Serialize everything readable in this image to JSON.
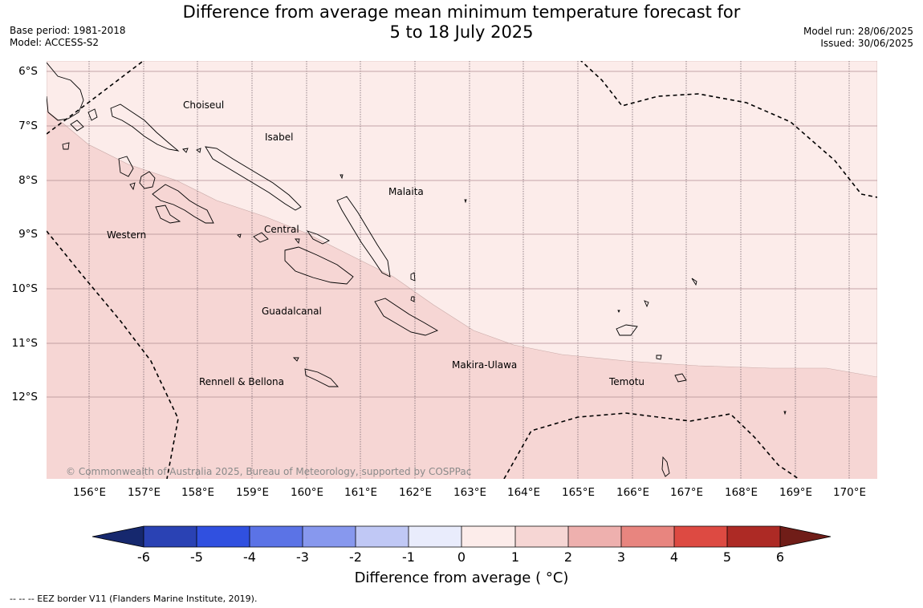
{
  "title": {
    "line1": "Difference from average mean minimum temperature forecast for",
    "line2": "5 to 18 July 2025"
  },
  "meta_left": {
    "base_period": "Base period: 1981-2018",
    "model": "Model: ACCESS-S2"
  },
  "meta_right": {
    "model_run": "Model run: 28/06/2025",
    "issued": "Issued: 30/06/2025"
  },
  "lat_labels": [
    "6°S",
    "7°S",
    "8°S",
    "9°S",
    "10°S",
    "11°S",
    "12°S"
  ],
  "lon_labels": [
    "156°E",
    "157°E",
    "158°E",
    "159°E",
    "160°E",
    "161°E",
    "162°E",
    "163°E",
    "164°E",
    "165°E",
    "166°E",
    "167°E",
    "168°E",
    "169°E",
    "170°E"
  ],
  "regions": [
    "Choiseul",
    "Isabel",
    "Malaita",
    "Western",
    "Central",
    "Guadalcanal",
    "Makira-Ulawa",
    "Rennell & Bellona",
    "Temotu"
  ],
  "copyright": "© Commonwealth of Australia 2025, Bureau of Meteorology, supported by COSPPac",
  "colorbar": {
    "ticks": [
      "-6",
      "-5",
      "-4",
      "-3",
      "-2",
      "-1",
      "0",
      "1",
      "2",
      "3",
      "4",
      "5",
      "6"
    ],
    "colors": [
      "#16286e",
      "#2a42b4",
      "#3050e0",
      "#5b73e6",
      "#8798ee",
      "#c0c8f5",
      "#e9ecfc",
      "#fcecea",
      "#f6d6d4",
      "#eeb0ae",
      "#e8857f",
      "#dd4a42",
      "#ad2a25",
      "#701d18"
    ],
    "title": "Difference from average ( °C)"
  },
  "map_colors": {
    "above_1_to_2": "#f6d6d4",
    "above_0_to_1": "#fcecea"
  },
  "footer": "--  --  -- EEZ border V11 (Flanders Marine Institute, 2019)."
}
